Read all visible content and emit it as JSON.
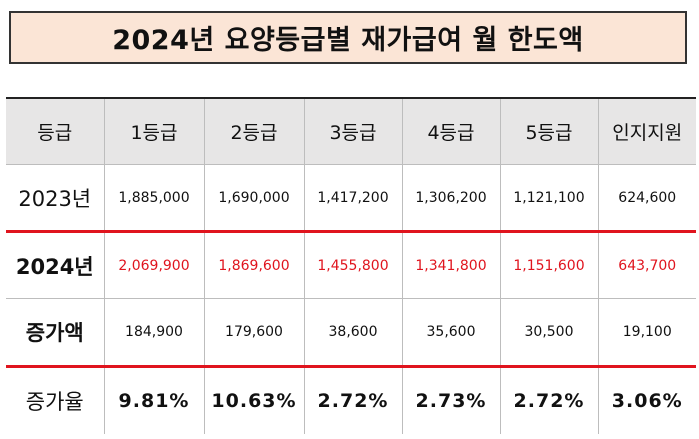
{
  "title": "2024년 요양등급별 재가급여 월 한도액",
  "table": {
    "header": [
      "등급",
      "1등급",
      "2등급",
      "3등급",
      "4등급",
      "5등급",
      "인지지원"
    ],
    "rows": [
      {
        "label": "2023년",
        "values": [
          "1,885,000",
          "1,690,000",
          "1,417,200",
          "1,306,200",
          "1,121,100",
          "624,600"
        ]
      },
      {
        "label": "2024년",
        "values": [
          "2,069,900",
          "1,869,600",
          "1,455,800",
          "1,341,800",
          "1,151,600",
          "643,700"
        ]
      },
      {
        "label": "증가액",
        "values": [
          "184,900",
          "179,600",
          "38,600",
          "35,600",
          "30,500",
          "19,100"
        ]
      },
      {
        "label": "증가율",
        "values": [
          "9.81%",
          "10.63%",
          "2.72%",
          "2.73%",
          "2.72%",
          "3.06%"
        ]
      }
    ]
  },
  "colors": {
    "title_background": "#fbe5d6",
    "header_background": "#e7e6e6",
    "highlight_red": "#e0141e"
  }
}
